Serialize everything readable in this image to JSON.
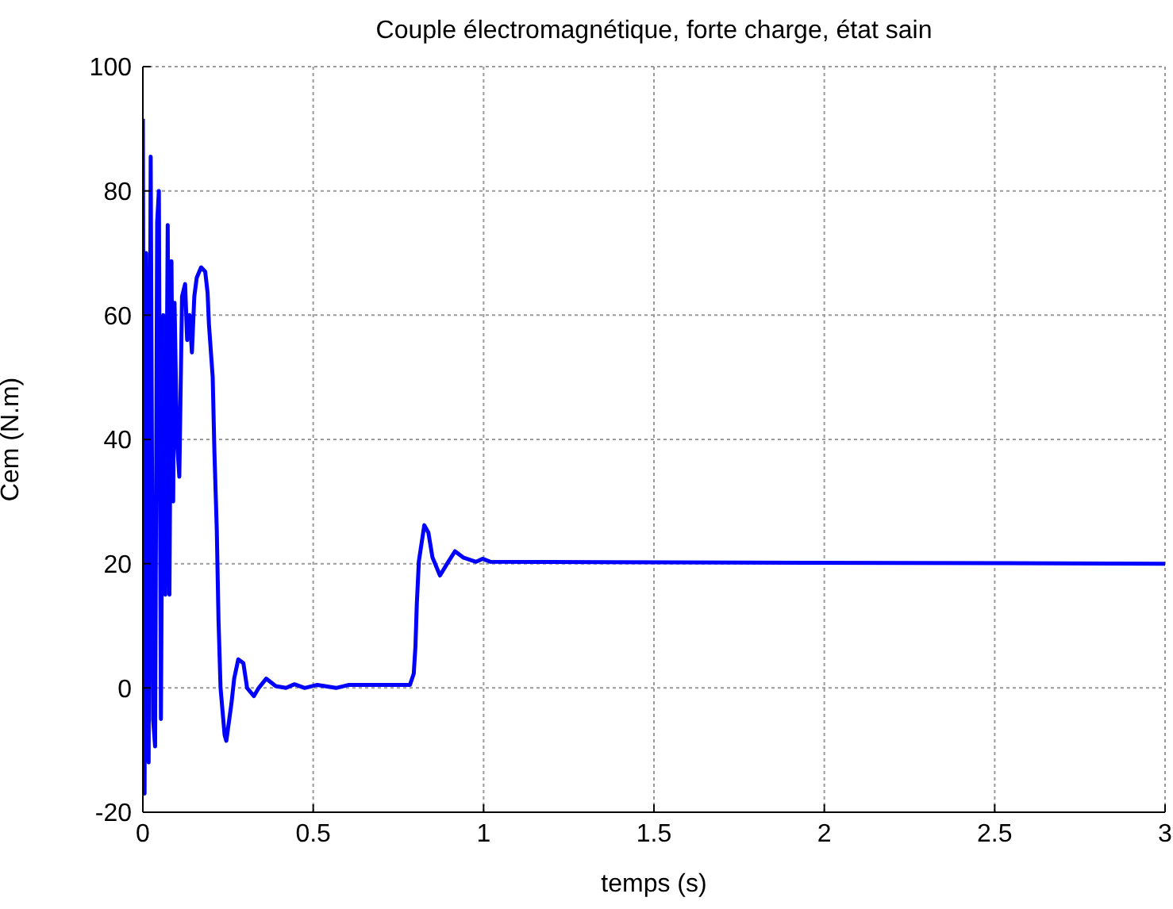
{
  "chart_data": {
    "type": "line",
    "title": "Couple électromagnétique, forte charge, état sain",
    "xlabel": "temps (s)",
    "ylabel": "Cem (N.m)",
    "xlim": [
      0,
      3
    ],
    "xticks": [
      0,
      0.5,
      1,
      1.5,
      2,
      2.5,
      3
    ],
    "ylim": [
      -20,
      100
    ],
    "yticks": [
      -20,
      0,
      20,
      40,
      60,
      80,
      100
    ],
    "grid": true,
    "marker": "none",
    "line_style": "solid",
    "series": [
      {
        "color": "#0000ff",
        "x": [
          0,
          0.005,
          0.01,
          0.017,
          0.023,
          0.03,
          0.036,
          0.042,
          0.047,
          0.053,
          0.06,
          0.066,
          0.073,
          0.078,
          0.084,
          0.089,
          0.093,
          0.1,
          0.107,
          0.115,
          0.124,
          0.13,
          0.137,
          0.144,
          0.151,
          0.158,
          0.171,
          0.183,
          0.19,
          0.194,
          0.205,
          0.21,
          0.217,
          0.222,
          0.228,
          0.24,
          0.245,
          0.26,
          0.268,
          0.28,
          0.295,
          0.306,
          0.326,
          0.34,
          0.362,
          0.39,
          0.42,
          0.445,
          0.475,
          0.512,
          0.567,
          0.605,
          0.784,
          0.795,
          0.8,
          0.804,
          0.81,
          0.826,
          0.838,
          0.85,
          0.872,
          0.893,
          0.916,
          0.94,
          0.978,
          0.997,
          1.02,
          3
        ],
        "values": [
          91.6,
          -17,
          70,
          -12,
          85.5,
          -5,
          -9.4,
          75,
          80,
          -5,
          60,
          15,
          74.5,
          15,
          68.7,
          30,
          62,
          40,
          34,
          63,
          65,
          56,
          60,
          54,
          63,
          66,
          67.7,
          67,
          63.6,
          58.5,
          50,
          38,
          25.4,
          11,
          0,
          -7.6,
          -8.5,
          -2.5,
          1.5,
          4.6,
          4,
          0,
          -1.3,
          0,
          1.5,
          0.3,
          0,
          0.6,
          0,
          0.5,
          0,
          0.5,
          0.5,
          2.3,
          6.7,
          13.5,
          20.4,
          26.2,
          25,
          21,
          18.1,
          20,
          22,
          21,
          20.3,
          20.8,
          20.3,
          20
        ]
      }
    ]
  }
}
